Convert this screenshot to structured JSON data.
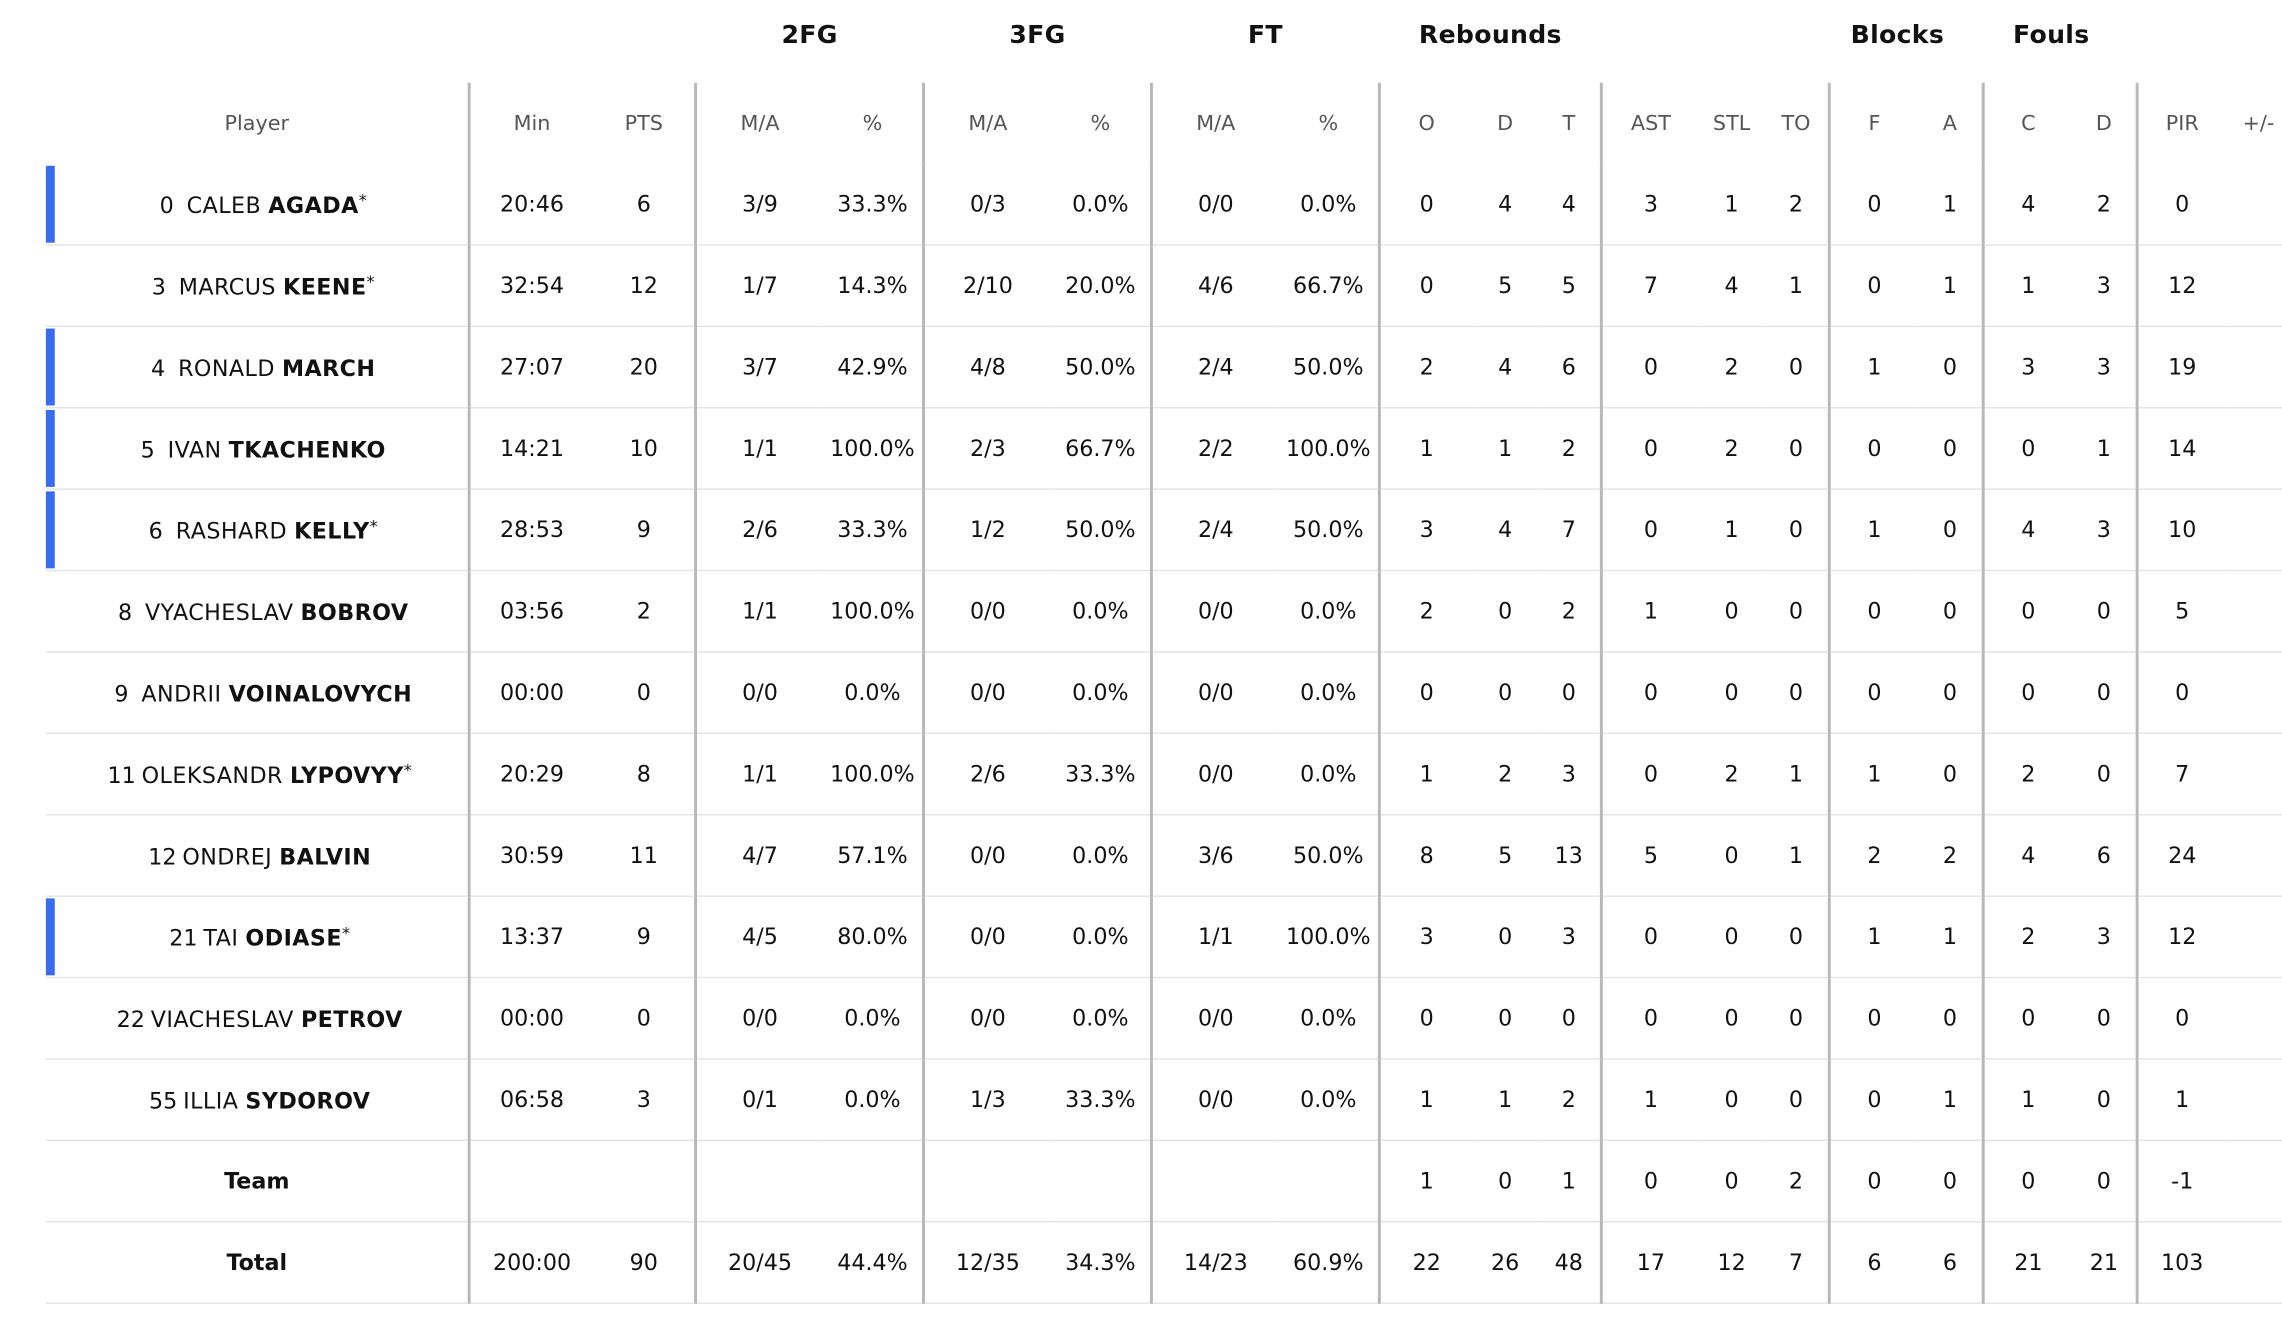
{
  "groups": [
    {
      "label": "2FG"
    },
    {
      "label": "3FG"
    },
    {
      "label": "FT"
    },
    {
      "label": "Rebounds"
    },
    {
      "label": "Blocks"
    },
    {
      "label": "Fouls"
    }
  ],
  "columns": [
    "Player",
    "Min",
    "PTS",
    "M/A",
    "%",
    "M/A",
    "%",
    "M/A",
    "%",
    "O",
    "D",
    "T",
    "AST",
    "STL",
    "TO",
    "F",
    "A",
    "C",
    "D",
    "PIR",
    "+/-"
  ],
  "accent_color": "#3a6cf0",
  "players": [
    {
      "number": "0",
      "first": "CALEB",
      "last": "AGADA",
      "star": "*",
      "on_court": true,
      "stats": [
        "20:46",
        "6",
        "3/9",
        "33.3%",
        "0/3",
        "0.0%",
        "0/0",
        "0.0%",
        "0",
        "4",
        "4",
        "3",
        "1",
        "2",
        "0",
        "1",
        "4",
        "2",
        "0",
        ""
      ]
    },
    {
      "number": "3",
      "first": "MARCUS",
      "last": "KEENE",
      "star": "*",
      "on_court": false,
      "stats": [
        "32:54",
        "12",
        "1/7",
        "14.3%",
        "2/10",
        "20.0%",
        "4/6",
        "66.7%",
        "0",
        "5",
        "5",
        "7",
        "4",
        "1",
        "0",
        "1",
        "1",
        "3",
        "12",
        ""
      ]
    },
    {
      "number": "4",
      "first": "RONALD",
      "last": "MARCH",
      "star": "",
      "on_court": true,
      "stats": [
        "27:07",
        "20",
        "3/7",
        "42.9%",
        "4/8",
        "50.0%",
        "2/4",
        "50.0%",
        "2",
        "4",
        "6",
        "0",
        "2",
        "0",
        "1",
        "0",
        "3",
        "3",
        "19",
        ""
      ]
    },
    {
      "number": "5",
      "first": "IVAN",
      "last": "TKACHENKO",
      "star": "",
      "on_court": true,
      "stats": [
        "14:21",
        "10",
        "1/1",
        "100.0%",
        "2/3",
        "66.7%",
        "2/2",
        "100.0%",
        "1",
        "1",
        "2",
        "0",
        "2",
        "0",
        "0",
        "0",
        "0",
        "1",
        "14",
        ""
      ]
    },
    {
      "number": "6",
      "first": "RASHARD",
      "last": "KELLY",
      "star": "*",
      "on_court": true,
      "stats": [
        "28:53",
        "9",
        "2/6",
        "33.3%",
        "1/2",
        "50.0%",
        "2/4",
        "50.0%",
        "3",
        "4",
        "7",
        "0",
        "1",
        "0",
        "1",
        "0",
        "4",
        "3",
        "10",
        ""
      ]
    },
    {
      "number": "8",
      "first": "VYACHESLAV",
      "last": "BOBROV",
      "star": "",
      "on_court": false,
      "stats": [
        "03:56",
        "2",
        "1/1",
        "100.0%",
        "0/0",
        "0.0%",
        "0/0",
        "0.0%",
        "2",
        "0",
        "2",
        "1",
        "0",
        "0",
        "0",
        "0",
        "0",
        "0",
        "5",
        ""
      ]
    },
    {
      "number": "9",
      "first": "ANDRII",
      "last": "VOINALOVYCH",
      "star": "",
      "on_court": false,
      "stats": [
        "00:00",
        "0",
        "0/0",
        "0.0%",
        "0/0",
        "0.0%",
        "0/0",
        "0.0%",
        "0",
        "0",
        "0",
        "0",
        "0",
        "0",
        "0",
        "0",
        "0",
        "0",
        "0",
        ""
      ]
    },
    {
      "number": "11",
      "first": "OLEKSANDR",
      "last": "LYPOVYY",
      "star": "*",
      "on_court": false,
      "stats": [
        "20:29",
        "8",
        "1/1",
        "100.0%",
        "2/6",
        "33.3%",
        "0/0",
        "0.0%",
        "1",
        "2",
        "3",
        "0",
        "2",
        "1",
        "1",
        "0",
        "2",
        "0",
        "7",
        ""
      ]
    },
    {
      "number": "12",
      "first": "ONDREJ",
      "last": "BALVIN",
      "star": "",
      "on_court": false,
      "stats": [
        "30:59",
        "11",
        "4/7",
        "57.1%",
        "0/0",
        "0.0%",
        "3/6",
        "50.0%",
        "8",
        "5",
        "13",
        "5",
        "0",
        "1",
        "2",
        "2",
        "4",
        "6",
        "24",
        ""
      ]
    },
    {
      "number": "21",
      "first": "TAI",
      "last": "ODIASE",
      "star": "*",
      "on_court": true,
      "stats": [
        "13:37",
        "9",
        "4/5",
        "80.0%",
        "0/0",
        "0.0%",
        "1/1",
        "100.0%",
        "3",
        "0",
        "3",
        "0",
        "0",
        "0",
        "1",
        "1",
        "2",
        "3",
        "12",
        ""
      ]
    },
    {
      "number": "22",
      "first": "VIACHESLAV",
      "last": "PETROV",
      "star": "",
      "on_court": false,
      "stats": [
        "00:00",
        "0",
        "0/0",
        "0.0%",
        "0/0",
        "0.0%",
        "0/0",
        "0.0%",
        "0",
        "0",
        "0",
        "0",
        "0",
        "0",
        "0",
        "0",
        "0",
        "0",
        "0",
        ""
      ]
    },
    {
      "number": "55",
      "first": "ILLIA",
      "last": "SYDOROV",
      "star": "",
      "on_court": false,
      "stats": [
        "06:58",
        "3",
        "0/1",
        "0.0%",
        "1/3",
        "33.3%",
        "0/0",
        "0.0%",
        "1",
        "1",
        "2",
        "1",
        "0",
        "0",
        "0",
        "1",
        "1",
        "0",
        "1",
        ""
      ]
    }
  ],
  "summary_rows": [
    {
      "label": "Team",
      "stats": [
        "",
        "",
        "",
        "",
        "",
        "",
        "",
        "",
        "1",
        "0",
        "1",
        "0",
        "0",
        "2",
        "0",
        "0",
        "0",
        "0",
        "-1",
        ""
      ]
    },
    {
      "label": "Total",
      "stats": [
        "200:00",
        "90",
        "20/45",
        "44.4%",
        "12/35",
        "34.3%",
        "14/23",
        "60.9%",
        "22",
        "26",
        "48",
        "17",
        "12",
        "7",
        "6",
        "6",
        "21",
        "21",
        "103",
        ""
      ]
    }
  ]
}
